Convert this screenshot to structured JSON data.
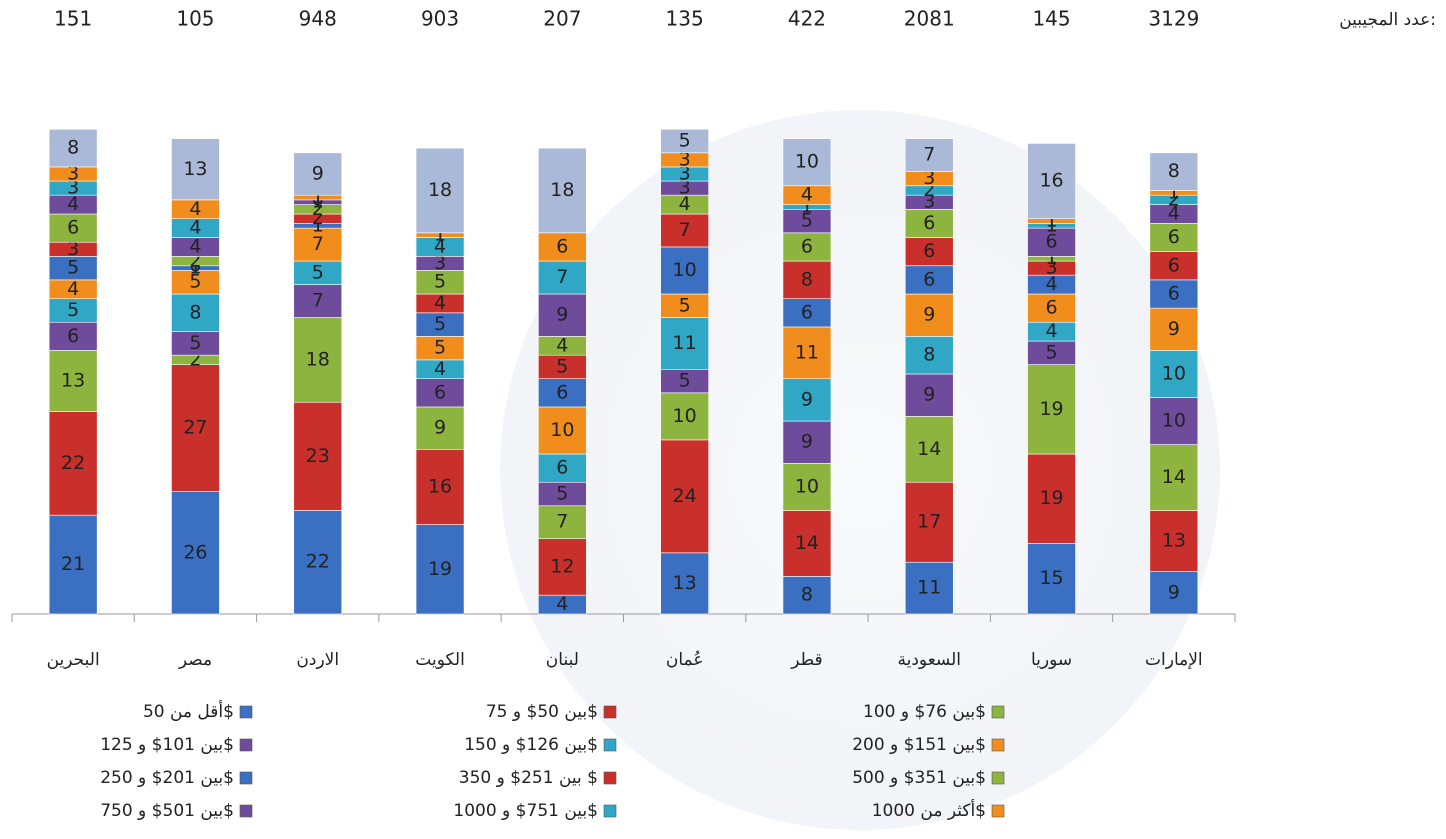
{
  "chart_data": {
    "type": "stacked_bar",
    "respondents_label": "عدد المجيبين:",
    "respondents": [
      151,
      105,
      948,
      903,
      207,
      135,
      422,
      2081,
      145,
      3129
    ],
    "categories": [
      "البحرين",
      "مصر",
      "الاردن",
      "الكويت",
      "لبنان",
      "عُمان",
      "قطر",
      "السعودية",
      "سوريا",
      "الإمارات"
    ],
    "ylim": [
      0,
      102
    ],
    "series": [
      {
        "name": "أقل من 50$",
        "color": "#3b6fc1",
        "values": [
          21,
          26,
          22,
          19,
          4,
          13,
          8,
          11,
          15,
          9
        ]
      },
      {
        "name": "بين 50$ و 75$",
        "color": "#c9302c",
        "values": [
          22,
          27,
          23,
          16,
          12,
          24,
          14,
          17,
          19,
          13
        ]
      },
      {
        "name": "بين 76$ و 100$",
        "color": "#8db43e",
        "values": [
          13,
          2,
          18,
          9,
          7,
          10,
          10,
          14,
          19,
          14
        ]
      },
      {
        "name": "بين 101$ و 125$",
        "color": "#6f4b9b",
        "values": [
          6,
          5,
          7,
          6,
          5,
          5,
          9,
          9,
          5,
          10
        ]
      },
      {
        "name": "بين 126$ و 150$",
        "color": "#30a7c5",
        "values": [
          5,
          8,
          5,
          4,
          6,
          11,
          9,
          8,
          4,
          10
        ]
      },
      {
        "name": "بين 151$ و 200$",
        "color": "#f08d1d",
        "values": [
          4,
          5,
          7,
          5,
          10,
          5,
          11,
          9,
          6,
          9
        ]
      },
      {
        "name": "بين 201$ و 250$",
        "color": "#3b6fc1",
        "values": [
          5,
          1,
          1,
          5,
          6,
          10,
          6,
          6,
          4,
          6
        ]
      },
      {
        "name": "بين 251$ و 350 $",
        "color": "#c9302c",
        "values": [
          3,
          0,
          2,
          4,
          5,
          7,
          8,
          6,
          3,
          6
        ]
      },
      {
        "name": "بين 351$ و 500$",
        "color": "#8db43e",
        "values": [
          6,
          2,
          2,
          5,
          4,
          4,
          6,
          6,
          1,
          6
        ]
      },
      {
        "name": "بين 501$ و 750$",
        "color": "#6f4b9b",
        "values": [
          4,
          4,
          1,
          3,
          9,
          3,
          5,
          3,
          6,
          4
        ]
      },
      {
        "name": "بين 751$ و 1000$",
        "color": "#30a7c5",
        "values": [
          3,
          4,
          0,
          4,
          7,
          3,
          1,
          2,
          1,
          2
        ]
      },
      {
        "name": "أكثر من 1000$",
        "color": "#f08d1d",
        "values": [
          3,
          4,
          1,
          1,
          6,
          3,
          4,
          3,
          1,
          1
        ]
      },
      {
        "color": "#aab9d8",
        "values": [
          8,
          13,
          9,
          18,
          18,
          5,
          10,
          7,
          16,
          8
        ]
      }
    ]
  }
}
